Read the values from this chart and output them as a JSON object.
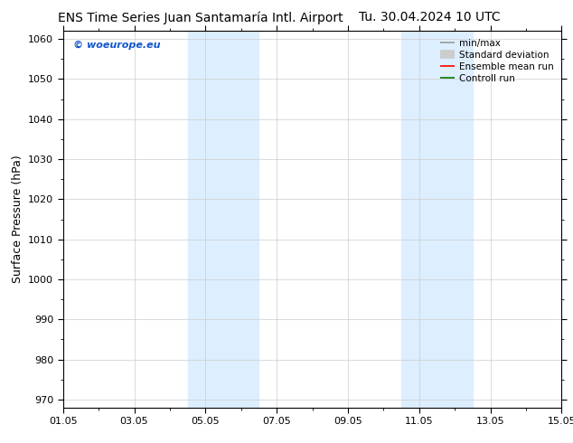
{
  "title_left": "ENS Time Series Juan Santamaría Intl. Airport",
  "title_right": "Tu. 30.04.2024 10 UTC",
  "ylabel": "Surface Pressure (hPa)",
  "ylim": [
    968,
    1062
  ],
  "yticks": [
    970,
    980,
    990,
    1000,
    1010,
    1020,
    1030,
    1040,
    1050,
    1060
  ],
  "xtick_labels": [
    "01.05",
    "03.05",
    "05.05",
    "07.05",
    "09.05",
    "11.05",
    "13.05",
    "15.05"
  ],
  "xtick_positions": [
    0,
    2,
    4,
    6,
    8,
    10,
    12,
    14
  ],
  "xlim": [
    0,
    14
  ],
  "shaded_regions": [
    {
      "start": 3.5,
      "end": 4.5
    },
    {
      "start": 4.5,
      "end": 5.5
    },
    {
      "start": 9.5,
      "end": 10.5
    },
    {
      "start": 10.5,
      "end": 11.5
    }
  ],
  "shade_color": "#ddeeff",
  "background_color": "#ffffff",
  "plot_bg_color": "#ffffff",
  "watermark_text": "© woeurope.eu",
  "watermark_color": "#1155cc",
  "legend_items": [
    {
      "label": "min/max",
      "color": "#999999",
      "lw": 1.2
    },
    {
      "label": "Standard deviation",
      "color": "#cccccc",
      "lw": 7
    },
    {
      "label": "Ensemble mean run",
      "color": "#ff0000",
      "lw": 1.2
    },
    {
      "label": "Controll run",
      "color": "#007700",
      "lw": 1.2
    }
  ],
  "grid_color": "#cccccc",
  "grid_lw": 0.5,
  "title_fontsize": 10,
  "axis_fontsize": 9,
  "tick_fontsize": 8,
  "legend_fontsize": 7.5
}
